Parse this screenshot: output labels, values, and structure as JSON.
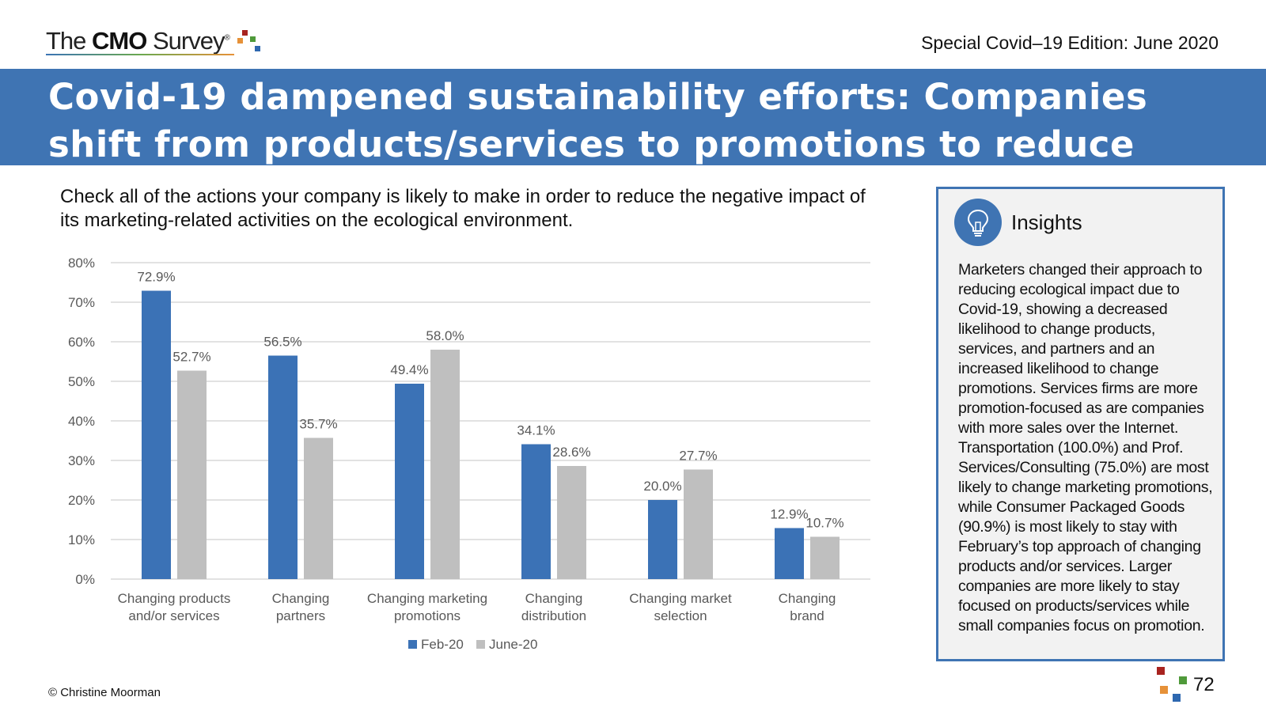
{
  "header": {
    "logo": {
      "prefix": "The ",
      "brand": "CMO",
      "suffix": " Survey",
      "reg": "®"
    },
    "edition": "Special Covid–19 Edition: June 2020"
  },
  "banner": {
    "title": "Covid-19 dampened sustainability efforts: Companies shift from products/services to promotions to reduce ecological impact"
  },
  "question": "Check all of the actions your company is likely to make in order to reduce the negative impact of its marketing-related activities on the ecological environment.",
  "chart_data": {
    "type": "bar",
    "categories": [
      [
        "Changing products",
        "and/or services"
      ],
      [
        "Changing",
        "partners"
      ],
      [
        "Changing marketing",
        "promotions"
      ],
      [
        "Changing",
        "distribution"
      ],
      [
        "Changing market",
        "selection"
      ],
      [
        "Changing",
        "brand"
      ]
    ],
    "series": [
      {
        "name": "Feb-20",
        "values": [
          72.9,
          56.5,
          49.4,
          34.1,
          20.0,
          12.9
        ],
        "labels": [
          "72.9%",
          "56.5%",
          "49.4%",
          "34.1%",
          "20.0%",
          "12.9%"
        ],
        "color": "#3b72b6"
      },
      {
        "name": "June-20",
        "values": [
          52.7,
          35.7,
          58.0,
          28.6,
          27.7,
          10.7
        ],
        "labels": [
          "52.7%",
          "35.7%",
          "58.0%",
          "28.6%",
          "27.7%",
          "10.7%"
        ],
        "color": "#bfbfbf"
      }
    ],
    "ylim": [
      0,
      80
    ],
    "yticks": [
      0,
      10,
      20,
      30,
      40,
      50,
      60,
      70,
      80
    ],
    "ytick_labels": [
      "0%",
      "10%",
      "20%",
      "30%",
      "40%",
      "50%",
      "60%",
      "70%",
      "80%"
    ],
    "grid": true,
    "legend": "bottom-center",
    "title": "",
    "xlabel": "",
    "ylabel": ""
  },
  "insights": {
    "title": "Insights",
    "text": "Marketers changed their approach to reducing ecological impact due to Covid-19, showing a decreased likelihood to change products, services, and partners and an increased likelihood to change promotions. Services firms are more promotion-focused as are companies with more sales over the Internet. Transportation (100.0%) and Prof. Services/Consulting (75.0%) are most likely to change marketing promotions, while Consumer Packaged Goods (90.9%) is most likely to stay with February’s top approach of changing products and/or services. Larger companies are more likely to stay focused on products/services while small companies focus on promotion."
  },
  "footer": {
    "copyright": "© Christine Moorman",
    "page_number": "72"
  },
  "colors": {
    "brand_blue": "#3f74b3",
    "accent_red": "#a8231f",
    "accent_orange": "#e69138",
    "accent_green": "#4f9a3a",
    "accent_blue": "#2e68b0"
  }
}
